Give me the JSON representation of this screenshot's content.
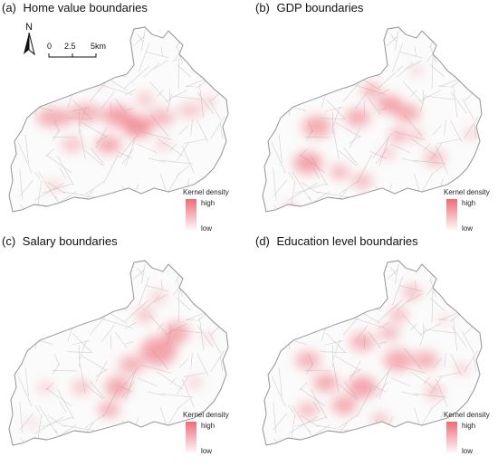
{
  "panels": [
    {
      "letter": "(a)",
      "title": "Home value boundaries"
    },
    {
      "letter": "(b)",
      "title": "GDP boundaries"
    },
    {
      "letter": "(c)",
      "title": "Salary boundaries"
    },
    {
      "letter": "(d)",
      "title": "Education level boundaries"
    }
  ],
  "legend": {
    "title": "Kernel density",
    "high": "high",
    "low": "low"
  },
  "north_arrow": {
    "label": "N"
  },
  "scale_bar": {
    "ticks": [
      "0",
      "2.5",
      "5km"
    ]
  },
  "colors": {
    "density_high": "#ee6b78",
    "density_low": "#ffffff",
    "outline": "#9a9a9a",
    "roads": "#cfcfcf"
  }
}
